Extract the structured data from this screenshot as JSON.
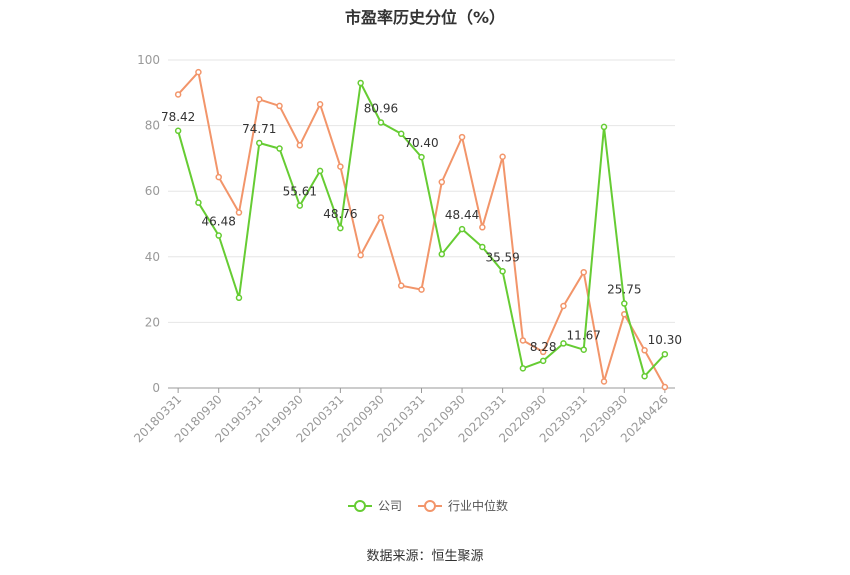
{
  "colors": {
    "company": "#66cc33",
    "industry": "#f2956a",
    "grid": "#e6e6e6",
    "axis": "#999999"
  },
  "chart_data": {
    "type": "line",
    "title": "市盈率历史分位（%）",
    "source": "数据来源：恒生聚源",
    "x_tick_labels": [
      "20180331",
      "20180930",
      "20190331",
      "20190930",
      "20200331",
      "20200930",
      "20210331",
      "20210930",
      "20220331",
      "20220930",
      "20230331",
      "20230930",
      "20240426"
    ],
    "x": [
      "20180331",
      "20180630",
      "20180930",
      "20181231",
      "20190331",
      "20190630",
      "20190930",
      "20191231",
      "20200331",
      "20200630",
      "20200930",
      "20201231",
      "20210331",
      "20210630",
      "20210930",
      "20211231",
      "20220331",
      "20220630",
      "20220930",
      "20221231",
      "20230331",
      "20230630",
      "20230930",
      "20231231",
      "20240426"
    ],
    "ylim": [
      0,
      100
    ],
    "y_ticks": [
      0,
      20,
      40,
      60,
      80,
      100
    ],
    "grid": true,
    "legend": "bottom-center",
    "series": [
      {
        "name": "公司",
        "values": [
          78.42,
          56.5,
          46.48,
          27.5,
          74.71,
          73.0,
          55.61,
          66.2,
          48.76,
          93.0,
          80.96,
          77.5,
          70.4,
          40.8,
          48.44,
          43.0,
          35.59,
          6.0,
          8.28,
          13.6,
          11.67,
          79.6,
          25.75,
          3.6,
          10.3
        ],
        "labels": [
          "78.42",
          "",
          "46.48",
          "",
          "74.71",
          "",
          "55.61",
          "",
          "48.76",
          "",
          "80.96",
          "",
          "70.40",
          "",
          "48.44",
          "",
          "35.59",
          "",
          "8.28",
          "",
          "11.67",
          "",
          "25.75",
          "",
          "10.30"
        ]
      },
      {
        "name": "行业中位数",
        "values": [
          89.5,
          96.3,
          64.3,
          53.5,
          88.0,
          86.0,
          74.0,
          86.5,
          67.5,
          40.5,
          52.0,
          31.2,
          30.0,
          62.8,
          76.5,
          49.0,
          70.5,
          14.5,
          11.0,
          25.0,
          35.3,
          2.0,
          22.5,
          11.5,
          0.3
        ]
      }
    ]
  }
}
